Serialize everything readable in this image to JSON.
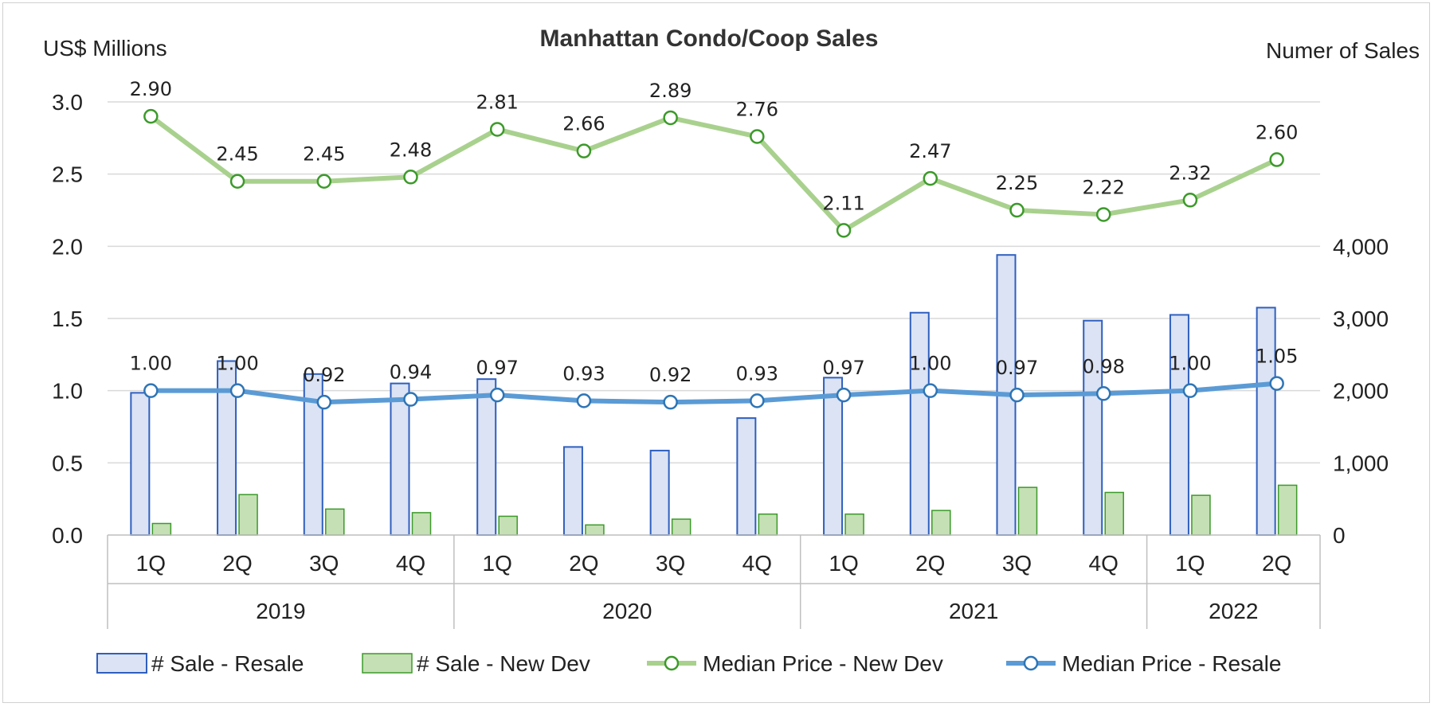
{
  "chart_data": {
    "type": "bar+line",
    "title": "Manhattan Condo/Coop Sales",
    "ylabel_left": "US$ Millions",
    "ylabel_right": "Numer of Sales",
    "ylim_left": [
      0,
      3.0
    ],
    "yticks_left": [
      "0.0",
      "0.5",
      "1.0",
      "1.5",
      "2.0",
      "2.5",
      "3.0"
    ],
    "ylim_right": [
      0,
      6000
    ],
    "yticks_right": [
      "0",
      "1,000",
      "2,000",
      "3,000",
      "4,000"
    ],
    "categories": [
      "1Q",
      "2Q",
      "3Q",
      "4Q",
      "1Q",
      "2Q",
      "3Q",
      "4Q",
      "1Q",
      "2Q",
      "3Q",
      "4Q",
      "1Q",
      "2Q"
    ],
    "year_groups": [
      {
        "label": "2019",
        "count": 4
      },
      {
        "label": "2020",
        "count": 4
      },
      {
        "label": "2021",
        "count": 4
      },
      {
        "label": "2022",
        "count": 2
      }
    ],
    "series": [
      {
        "name": "# Sale - Resale",
        "type": "bar",
        "axis": "right",
        "color": "#dbe3f4",
        "stroke": "#2f5fbf",
        "values": [
          1970,
          2410,
          2230,
          2100,
          2160,
          1220,
          1170,
          1620,
          2180,
          3080,
          3880,
          2970,
          3050,
          3150
        ]
      },
      {
        "name": "# Sale - New Dev",
        "type": "bar",
        "axis": "right",
        "color": "#c5e0b4",
        "stroke": "#3c9a2a",
        "values": [
          160,
          560,
          360,
          310,
          260,
          140,
          220,
          290,
          290,
          340,
          660,
          590,
          550,
          690
        ]
      },
      {
        "name": "Median Price - New Dev",
        "type": "line",
        "axis": "left",
        "color": "#a9d18e",
        "marker": "#3c9a2a",
        "values": [
          2.9,
          2.45,
          2.45,
          2.48,
          2.81,
          2.66,
          2.89,
          2.76,
          2.11,
          2.47,
          2.25,
          2.22,
          2.32,
          2.6
        ],
        "labels": [
          "2.90",
          "2.45",
          "2.45",
          "2.48",
          "2.81",
          "2.66",
          "2.89",
          "2.76",
          "2.11",
          "2.47",
          "2.25",
          "2.22",
          "2.32",
          "2.60"
        ]
      },
      {
        "name": "Median Price - Resale",
        "type": "line",
        "axis": "left",
        "color": "#5b9bd5",
        "marker": "#2e75b6",
        "values": [
          1.0,
          1.0,
          0.92,
          0.94,
          0.97,
          0.93,
          0.92,
          0.93,
          0.97,
          1.0,
          0.97,
          0.98,
          1.0,
          1.05
        ],
        "labels": [
          "1.00",
          "1.00",
          "0.92",
          "0.94",
          "0.97",
          "0.93",
          "0.92",
          "0.93",
          "0.97",
          "1.00",
          "0.97",
          "0.98",
          "1.00",
          "1.05"
        ]
      }
    ],
    "legend": [
      "# Sale - Resale",
      "# Sale - New Dev",
      "Median Price - New Dev",
      "Median Price - Resale"
    ],
    "legend_position": "bottom"
  }
}
